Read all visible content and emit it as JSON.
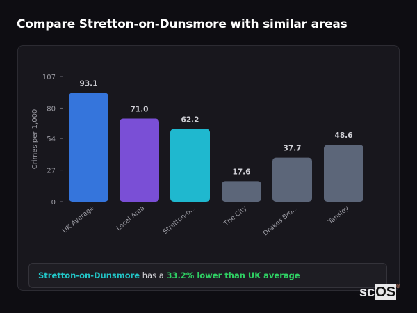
{
  "title": "Compare Stretton-on-Dunsmore with similar areas",
  "chart_data": {
    "type": "bar",
    "ylabel": "Crimes per 1,000",
    "ylim": [
      0,
      107
    ],
    "yticks": [
      0,
      27,
      54,
      80,
      107
    ],
    "categories": [
      "UK Average",
      "Local Area",
      "Stretton-o...",
      "The City",
      "Drakes Bro...",
      "Tansley"
    ],
    "values": [
      93.1,
      71.0,
      62.2,
      17.6,
      37.7,
      48.6
    ],
    "value_labels": [
      "93.1",
      "71.0",
      "62.2",
      "17.6",
      "37.7",
      "48.6"
    ],
    "colors": [
      "#3575dc",
      "#7a4fd6",
      "#1fb8cf",
      "#5c6679",
      "#5c6679",
      "#5c6679"
    ],
    "grid": false
  },
  "summary": {
    "area": "Stretton-on-Dunsmore",
    "middle": " has a ",
    "comparison": "33.2% lower than UK average"
  },
  "logo": {
    "text_a": "sc",
    "text_b": "OS",
    "mark": "®"
  }
}
